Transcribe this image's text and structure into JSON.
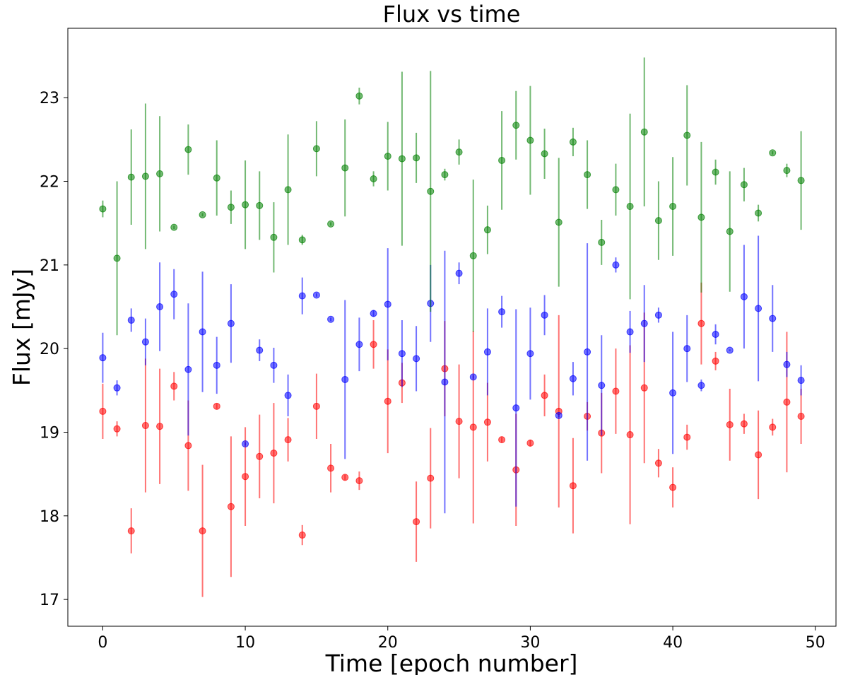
{
  "chart_data": {
    "type": "scatter",
    "title": "Flux vs time",
    "xlabel": "Time [epoch number]",
    "ylabel": "Flux [mJy]",
    "xlim": [
      -2.45,
      51.45
    ],
    "ylim": [
      16.68,
      23.83
    ],
    "xticks": [
      0,
      10,
      20,
      30,
      40,
      50
    ],
    "yticks": [
      17,
      18,
      19,
      20,
      21,
      22,
      23
    ],
    "grid": false,
    "legend": "none",
    "x": [
      0,
      1,
      2,
      3,
      4,
      5,
      6,
      7,
      8,
      9,
      10,
      11,
      12,
      13,
      14,
      15,
      16,
      17,
      18,
      19,
      20,
      21,
      22,
      23,
      24,
      25,
      26,
      27,
      28,
      29,
      30,
      31,
      32,
      33,
      34,
      35,
      36,
      37,
      38,
      39,
      40,
      41,
      42,
      43,
      44,
      45,
      46,
      47,
      48,
      49
    ],
    "series": [
      {
        "color": "#ff0000",
        "y": [
          19.25,
          19.04,
          17.82,
          19.08,
          19.07,
          19.55,
          18.84,
          17.82,
          19.31,
          18.11,
          18.47,
          18.71,
          18.75,
          18.91,
          17.77,
          19.31,
          18.57,
          18.46,
          18.42,
          20.05,
          19.37,
          19.59,
          17.93,
          18.45,
          19.76,
          19.13,
          19.06,
          19.12,
          18.91,
          18.55,
          18.87,
          19.44,
          19.25,
          18.36,
          19.19,
          18.99,
          19.49,
          18.97,
          19.53,
          18.63,
          18.34,
          18.94,
          20.3,
          19.85,
          19.09,
          19.1,
          18.73,
          19.06,
          19.36,
          19.19
        ],
        "err": [
          0.33,
          0.09,
          0.27,
          0.8,
          0.69,
          0.17,
          0.54,
          0.79,
          0.03,
          0.84,
          0.59,
          0.5,
          0.6,
          0.26,
          0.12,
          0.39,
          0.29,
          0.03,
          0.11,
          0.29,
          0.62,
          0.24,
          0.48,
          0.6,
          0.57,
          0.68,
          1.15,
          0.47,
          0.03,
          0.67,
          0.04,
          0.25,
          1.15,
          0.57,
          0.17,
          0.48,
          0.51,
          1.07,
          0.9,
          0.17,
          0.24,
          0.15,
          0.49,
          0.11,
          0.43,
          0.12,
          0.53,
          0.1,
          0.84,
          0.33
        ]
      },
      {
        "color": "#0000ff",
        "y": [
          19.89,
          19.53,
          20.34,
          20.08,
          20.5,
          20.65,
          19.75,
          20.2,
          19.8,
          20.3,
          18.86,
          19.98,
          19.8,
          19.44,
          20.63,
          20.64,
          20.35,
          19.63,
          20.05,
          20.42,
          20.53,
          19.94,
          19.88,
          20.54,
          19.6,
          20.9,
          19.66,
          19.96,
          20.44,
          19.29,
          19.94,
          20.4,
          19.2,
          19.64,
          19.96,
          19.56,
          21.0,
          20.2,
          20.3,
          20.4,
          19.47,
          20.0,
          19.56,
          20.17,
          19.98,
          20.62,
          20.48,
          20.36,
          19.81,
          19.62
        ],
        "err": [
          0.3,
          0.09,
          0.14,
          0.28,
          0.53,
          0.3,
          0.79,
          0.72,
          0.34,
          0.47,
          0.02,
          0.13,
          0.21,
          0.25,
          0.22,
          0.02,
          0.02,
          0.95,
          0.32,
          0.04,
          0.67,
          0.4,
          0.39,
          0.46,
          1.57,
          0.13,
          0.02,
          0.52,
          0.19,
          1.18,
          0.55,
          0.24,
          0.02,
          0.2,
          1.3,
          0.6,
          0.09,
          0.25,
          0.46,
          0.09,
          0.73,
          0.4,
          0.07,
          0.12,
          0.01,
          0.62,
          0.87,
          0.4,
          0.15,
          0.18
        ]
      },
      {
        "color": "#008000",
        "y": [
          21.67,
          21.08,
          22.05,
          22.06,
          22.09,
          21.45,
          22.38,
          21.6,
          22.04,
          21.69,
          21.72,
          21.71,
          21.33,
          21.9,
          21.3,
          22.39,
          21.49,
          22.16,
          23.02,
          22.03,
          22.3,
          22.27,
          22.28,
          21.88,
          22.08,
          22.35,
          21.11,
          21.42,
          22.25,
          22.67,
          22.49,
          22.33,
          21.51,
          22.47,
          22.08,
          21.27,
          21.9,
          21.7,
          22.59,
          21.53,
          21.7,
          22.55,
          21.57,
          22.11,
          21.4,
          21.96,
          21.62,
          22.34,
          22.13,
          22.01
        ]
      }
    ],
    "green_err": [
      0.1,
      0.92,
      0.57,
      0.87,
      0.69,
      0.02,
      0.3,
      0.02,
      0.45,
      0.2,
      0.53,
      0.41,
      0.42,
      0.66,
      0.06,
      0.33,
      0.02,
      0.58,
      0.1,
      0.09,
      0.41,
      1.04,
      0.3,
      1.44,
      0.07,
      0.15,
      0.91,
      0.29,
      0.59,
      0.41,
      0.65,
      0.3,
      0.77,
      0.17,
      0.41,
      0.27,
      0.31,
      1.11,
      0.89,
      0.47,
      0.59,
      0.6,
      0.9,
      0.15,
      0.72,
      0.2,
      0.1,
      0.02,
      0.08,
      0.59
    ]
  }
}
